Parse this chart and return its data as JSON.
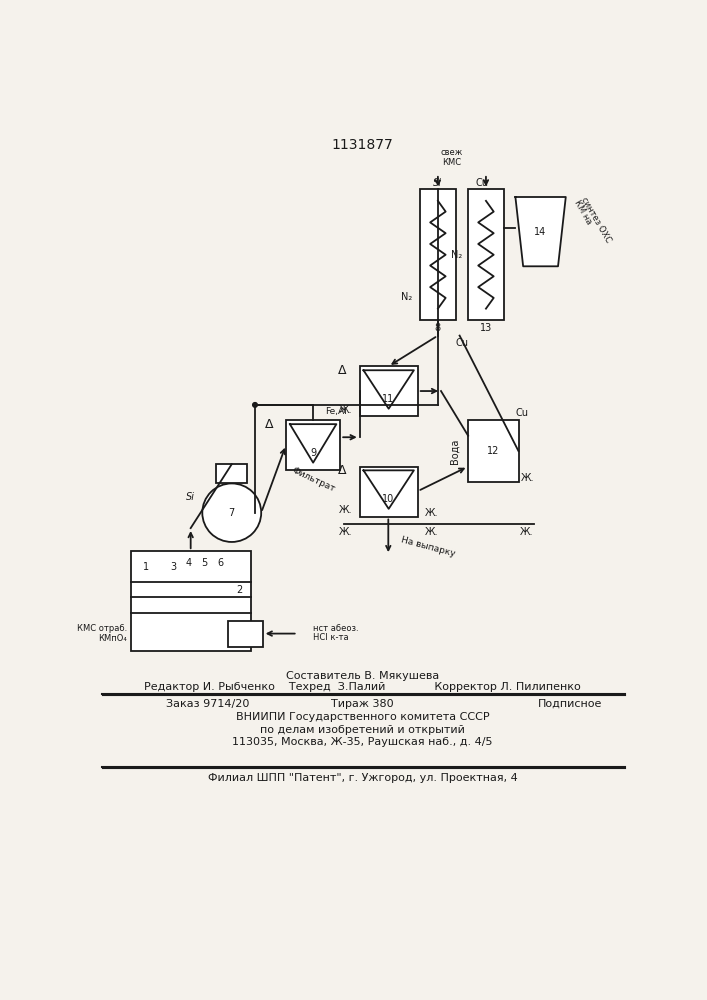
{
  "title": "1131877",
  "bg_color": "#f5f2ec",
  "line_color": "#1a1a1a",
  "footer_lines": [
    "Составитель В. Мякушева",
    "Редактор И. Рыбченко    Техред  З.Палий              Корректор Л. Пилипенко",
    "Заказ 9714/20             Тираж 380               Подписное",
    "ВНИИПИ Государственного комитета СССР",
    "по делам изобретений и открытий",
    "113035, Москва, Ж-35, Раушская наб., д. 4/5",
    "Филиал ШПП \"Патент\", г. Ужгород, ул. Проектная, 4"
  ]
}
